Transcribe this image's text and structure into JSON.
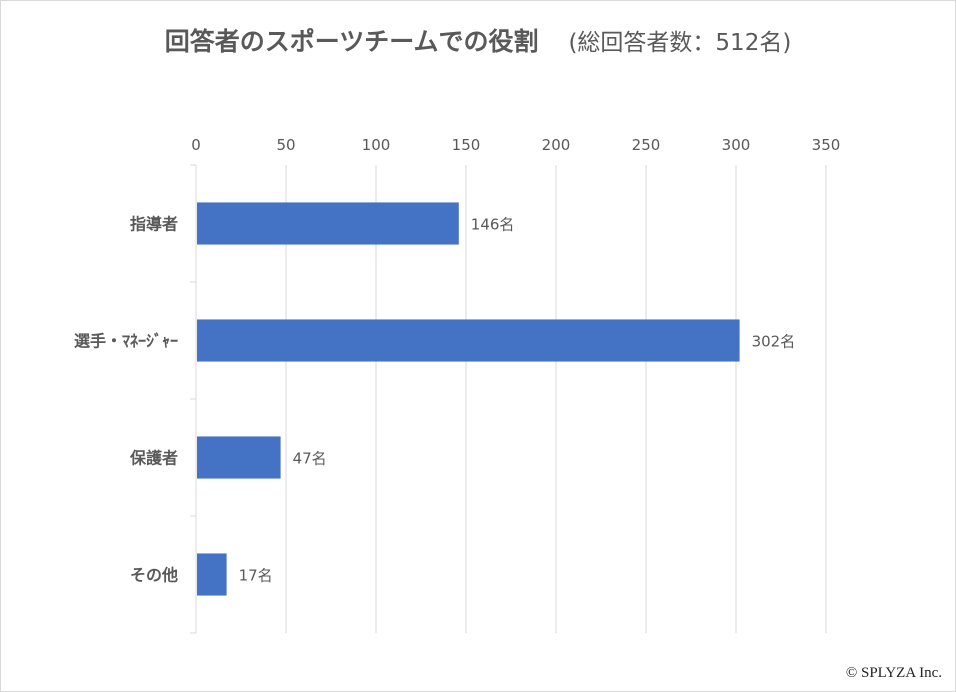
{
  "chart_data": {
    "type": "bar",
    "orientation": "horizontal",
    "title": "回答者のスポーツチームでの役割",
    "subtitle": "(総回答者数：512名)",
    "categories": [
      "指導者",
      "選手・ﾏﾈｰｼﾞｬｰ",
      "保護者",
      "その他"
    ],
    "values": [
      146,
      302,
      47,
      17
    ],
    "data_labels": [
      "146名",
      "302名",
      "47名",
      "17名"
    ],
    "xlim": [
      0,
      350
    ],
    "x_ticks": [
      0,
      50,
      100,
      150,
      200,
      250,
      300,
      350
    ],
    "x_tick_labels": [
      "0",
      "50",
      "100",
      "150",
      "200",
      "250",
      "300",
      "350"
    ],
    "x_axis_position": "top",
    "grid": true,
    "bar_color": "#4472c4",
    "grid_color": "#d9d9d9"
  },
  "footer": {
    "copyright": "© SPLYZA Inc."
  }
}
